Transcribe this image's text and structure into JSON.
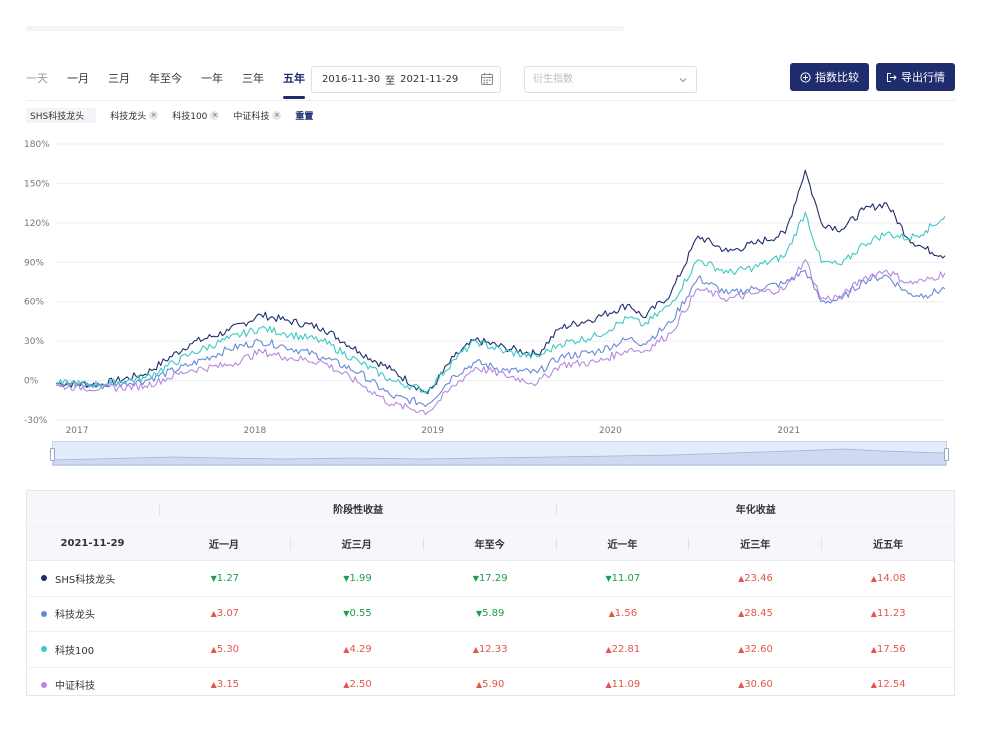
{
  "periods": [
    {
      "label": "一天",
      "state": "dim"
    },
    {
      "label": "一月",
      "state": "normal"
    },
    {
      "label": "三月",
      "state": "normal"
    },
    {
      "label": "年至今",
      "state": "normal"
    },
    {
      "label": "一年",
      "state": "normal"
    },
    {
      "label": "三年",
      "state": "normal"
    },
    {
      "label": "五年",
      "state": "active"
    }
  ],
  "date_range": {
    "start": "2016-11-30",
    "separator": "至",
    "end": "2021-11-29"
  },
  "derived_index_select": {
    "placeholder": "衍生指数"
  },
  "buttons": {
    "compare": "指数比较",
    "export": "导出行情"
  },
  "tags": [
    {
      "label": "SHS科技龙头",
      "removable": false
    },
    {
      "label": "科技龙头",
      "removable": true
    },
    {
      "label": "科技100",
      "removable": true
    },
    {
      "label": "中证科技",
      "removable": true
    }
  ],
  "tag_remove_symbol": "×",
  "reset_label": "重置",
  "colors": {
    "accent": "#1f2d6e",
    "up": "#e4554c",
    "down": "#1b9e50"
  },
  "chart_data": {
    "type": "line",
    "y_unit": "%",
    "ylim": [
      -30,
      180
    ],
    "yticks": [
      "180%",
      "150%",
      "120%",
      "90%",
      "60%",
      "30%",
      "0%",
      "-30%"
    ],
    "xticks": [
      "2017",
      "2018",
      "2019",
      "2020",
      "2021"
    ],
    "x_range": [
      "2016-11-30",
      "2021-11-29"
    ],
    "grid": true,
    "series": [
      {
        "name": "SHS科技龙头",
        "color": "#1f2d6e",
        "x": [
          "2016-11-30",
          "2017-03-01",
          "2017-06-01",
          "2017-09-01",
          "2017-11-20",
          "2018-01-25",
          "2018-03-15",
          "2018-06-01",
          "2018-08-15",
          "2018-10-20",
          "2019-01-02",
          "2019-02-25",
          "2019-04-10",
          "2019-06-10",
          "2019-08-15",
          "2019-10-01",
          "2019-12-15",
          "2020-02-20",
          "2020-03-20",
          "2020-05-15",
          "2020-07-10",
          "2020-09-10",
          "2020-11-01",
          "2021-01-05",
          "2021-02-15",
          "2021-03-20",
          "2021-05-01",
          "2021-06-15",
          "2021-08-01",
          "2021-09-15",
          "2021-10-20",
          "2021-11-29"
        ],
        "y": [
          -2,
          -3,
          5,
          28,
          38,
          50,
          46,
          40,
          22,
          8,
          -10,
          18,
          31,
          25,
          20,
          40,
          48,
          58,
          48,
          66,
          110,
          98,
          104,
          112,
          160,
          120,
          115,
          130,
          135,
          108,
          100,
          95
        ]
      },
      {
        "name": "科技龙头",
        "color": "#6a88d8",
        "x": [
          "2016-11-30",
          "2017-03-01",
          "2017-06-01",
          "2017-09-01",
          "2017-11-20",
          "2018-01-25",
          "2018-03-15",
          "2018-06-01",
          "2018-08-15",
          "2018-10-20",
          "2019-01-02",
          "2019-02-25",
          "2019-04-10",
          "2019-06-10",
          "2019-08-15",
          "2019-10-01",
          "2019-12-15",
          "2020-02-20",
          "2020-03-20",
          "2020-05-15",
          "2020-07-10",
          "2020-09-10",
          "2020-11-01",
          "2021-01-05",
          "2021-02-15",
          "2021-03-20",
          "2021-05-01",
          "2021-06-15",
          "2021-08-01",
          "2021-09-15",
          "2021-10-20",
          "2021-11-29"
        ],
        "y": [
          -2,
          -4,
          0,
          12,
          24,
          30,
          26,
          18,
          6,
          -12,
          -18,
          4,
          14,
          8,
          6,
          18,
          22,
          32,
          28,
          44,
          78,
          66,
          70,
          74,
          84,
          60,
          62,
          76,
          80,
          66,
          65,
          70
        ]
      },
      {
        "name": "科技100",
        "color": "#3ec9c4",
        "x": [
          "2016-11-30",
          "2017-03-01",
          "2017-06-01",
          "2017-09-01",
          "2017-11-20",
          "2018-01-25",
          "2018-03-15",
          "2018-06-01",
          "2018-08-15",
          "2018-10-20",
          "2019-01-02",
          "2019-02-25",
          "2019-04-10",
          "2019-06-10",
          "2019-08-15",
          "2019-10-01",
          "2019-12-15",
          "2020-02-20",
          "2020-03-20",
          "2020-05-15",
          "2020-07-10",
          "2020-09-10",
          "2020-11-01",
          "2021-01-05",
          "2021-02-15",
          "2021-03-20",
          "2021-05-01",
          "2021-06-15",
          "2021-08-01",
          "2021-09-15",
          "2021-10-20",
          "2021-11-29"
        ],
        "y": [
          -2,
          -3,
          2,
          20,
          32,
          40,
          36,
          30,
          14,
          0,
          -8,
          16,
          30,
          22,
          18,
          28,
          34,
          48,
          42,
          58,
          92,
          82,
          86,
          95,
          128,
          90,
          88,
          104,
          112,
          108,
          114,
          125
        ]
      },
      {
        "name": "中证科技",
        "color": "#b48ae0",
        "x": [
          "2016-11-30",
          "2017-03-01",
          "2017-06-01",
          "2017-09-01",
          "2017-11-20",
          "2018-01-25",
          "2018-03-15",
          "2018-06-01",
          "2018-08-15",
          "2018-10-20",
          "2019-01-02",
          "2019-02-25",
          "2019-04-10",
          "2019-06-10",
          "2019-08-15",
          "2019-10-01",
          "2019-12-15",
          "2020-02-20",
          "2020-03-20",
          "2020-05-15",
          "2020-07-10",
          "2020-09-10",
          "2020-11-01",
          "2021-01-05",
          "2021-02-15",
          "2021-03-20",
          "2021-05-01",
          "2021-06-15",
          "2021-08-01",
          "2021-09-15",
          "2021-10-20",
          "2021-11-29"
        ],
        "y": [
          -4,
          -6,
          -4,
          8,
          12,
          22,
          18,
          14,
          -2,
          -18,
          -24,
          -4,
          10,
          4,
          -2,
          12,
          14,
          24,
          22,
          36,
          70,
          62,
          66,
          70,
          92,
          62,
          64,
          78,
          84,
          74,
          76,
          82
        ]
      }
    ]
  },
  "table": {
    "group_headers": {
      "period": "阶段性收益",
      "annual": "年化收益"
    },
    "date_header": "2021-11-29",
    "columns": [
      "近一月",
      "近三月",
      "年至今",
      "近一年",
      "近三年",
      "近五年"
    ],
    "rows": [
      {
        "name": "SHS科技龙头",
        "color": "#1f2d6e",
        "values": [
          {
            "arrow": "▼",
            "value": "1.27",
            "dir": "down"
          },
          {
            "arrow": "▼",
            "value": "1.99",
            "dir": "down"
          },
          {
            "arrow": "▼",
            "value": "17.29",
            "dir": "down"
          },
          {
            "arrow": "▼",
            "value": "11.07",
            "dir": "down"
          },
          {
            "arrow": "▲",
            "value": "23.46",
            "dir": "up"
          },
          {
            "arrow": "▲",
            "value": "14.08",
            "dir": "up"
          }
        ]
      },
      {
        "name": "科技龙头",
        "color": "#6a88d8",
        "values": [
          {
            "arrow": "▲",
            "value": "3.07",
            "dir": "up"
          },
          {
            "arrow": "▼",
            "value": "0.55",
            "dir": "down"
          },
          {
            "arrow": "▼",
            "value": "5.89",
            "dir": "down"
          },
          {
            "arrow": "▲",
            "value": "1.56",
            "dir": "up"
          },
          {
            "arrow": "▲",
            "value": "28.45",
            "dir": "up"
          },
          {
            "arrow": "▲",
            "value": "11.23",
            "dir": "up"
          }
        ]
      },
      {
        "name": "科技100",
        "color": "#3ec9c4",
        "values": [
          {
            "arrow": "▲",
            "value": "5.30",
            "dir": "up"
          },
          {
            "arrow": "▲",
            "value": "4.29",
            "dir": "up"
          },
          {
            "arrow": "▲",
            "value": "12.33",
            "dir": "up"
          },
          {
            "arrow": "▲",
            "value": "22.81",
            "dir": "up"
          },
          {
            "arrow": "▲",
            "value": "32.60",
            "dir": "up"
          },
          {
            "arrow": "▲",
            "value": "17.56",
            "dir": "up"
          }
        ]
      },
      {
        "name": "中证科技",
        "color": "#b48ae0",
        "values": [
          {
            "arrow": "▲",
            "value": "3.15",
            "dir": "up"
          },
          {
            "arrow": "▲",
            "value": "2.50",
            "dir": "up"
          },
          {
            "arrow": "▲",
            "value": "5.90",
            "dir": "up"
          },
          {
            "arrow": "▲",
            "value": "11.09",
            "dir": "up"
          },
          {
            "arrow": "▲",
            "value": "30.60",
            "dir": "up"
          },
          {
            "arrow": "▲",
            "value": "12.54",
            "dir": "up"
          }
        ]
      }
    ]
  }
}
